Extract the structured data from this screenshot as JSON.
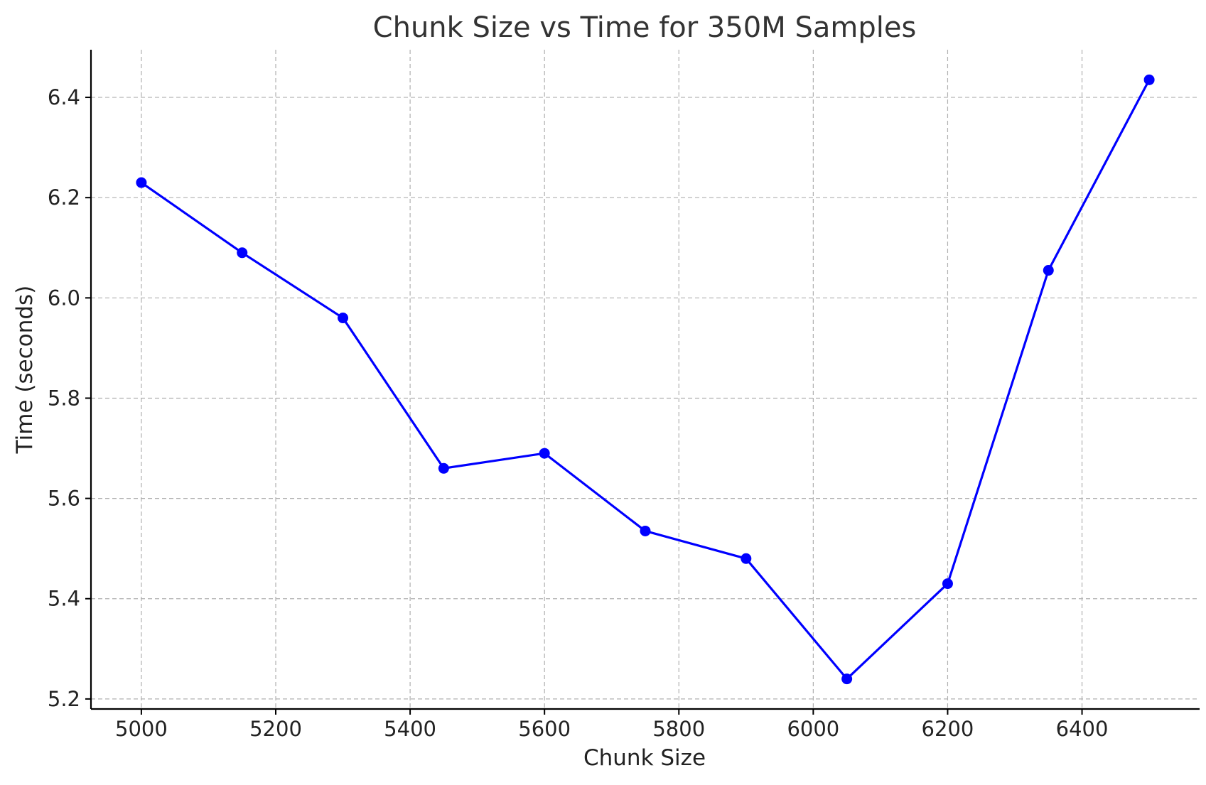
{
  "chart_data": {
    "type": "line",
    "title": "Chunk Size vs Time for 350M Samples",
    "xlabel": "Chunk Size",
    "ylabel": "Time (seconds)",
    "xlim": [
      4925,
      6575
    ],
    "ylim": [
      5.18,
      6.495
    ],
    "xticks": [
      5000,
      5200,
      5400,
      5600,
      5800,
      6000,
      6200,
      6400
    ],
    "yticks": [
      5.2,
      5.4,
      5.6,
      5.8,
      6.0,
      6.2,
      6.4
    ],
    "xtick_labels": [
      "5000",
      "5200",
      "5400",
      "5600",
      "5800",
      "6000",
      "6200",
      "6400"
    ],
    "ytick_labels": [
      "5.2",
      "5.4",
      "5.6",
      "5.8",
      "6.0",
      "6.2",
      "6.4"
    ],
    "grid": true,
    "grid_style": "dashed",
    "legend": false,
    "series": [
      {
        "color": "#0000ff",
        "marker": "circle",
        "x": [
          5000,
          5150,
          5300,
          5450,
          5600,
          5750,
          5900,
          6050,
          6200,
          6350,
          6500
        ],
        "values": [
          6.23,
          6.09,
          5.96,
          5.66,
          5.69,
          5.535,
          5.48,
          5.24,
          5.43,
          6.055,
          6.435
        ]
      }
    ]
  }
}
